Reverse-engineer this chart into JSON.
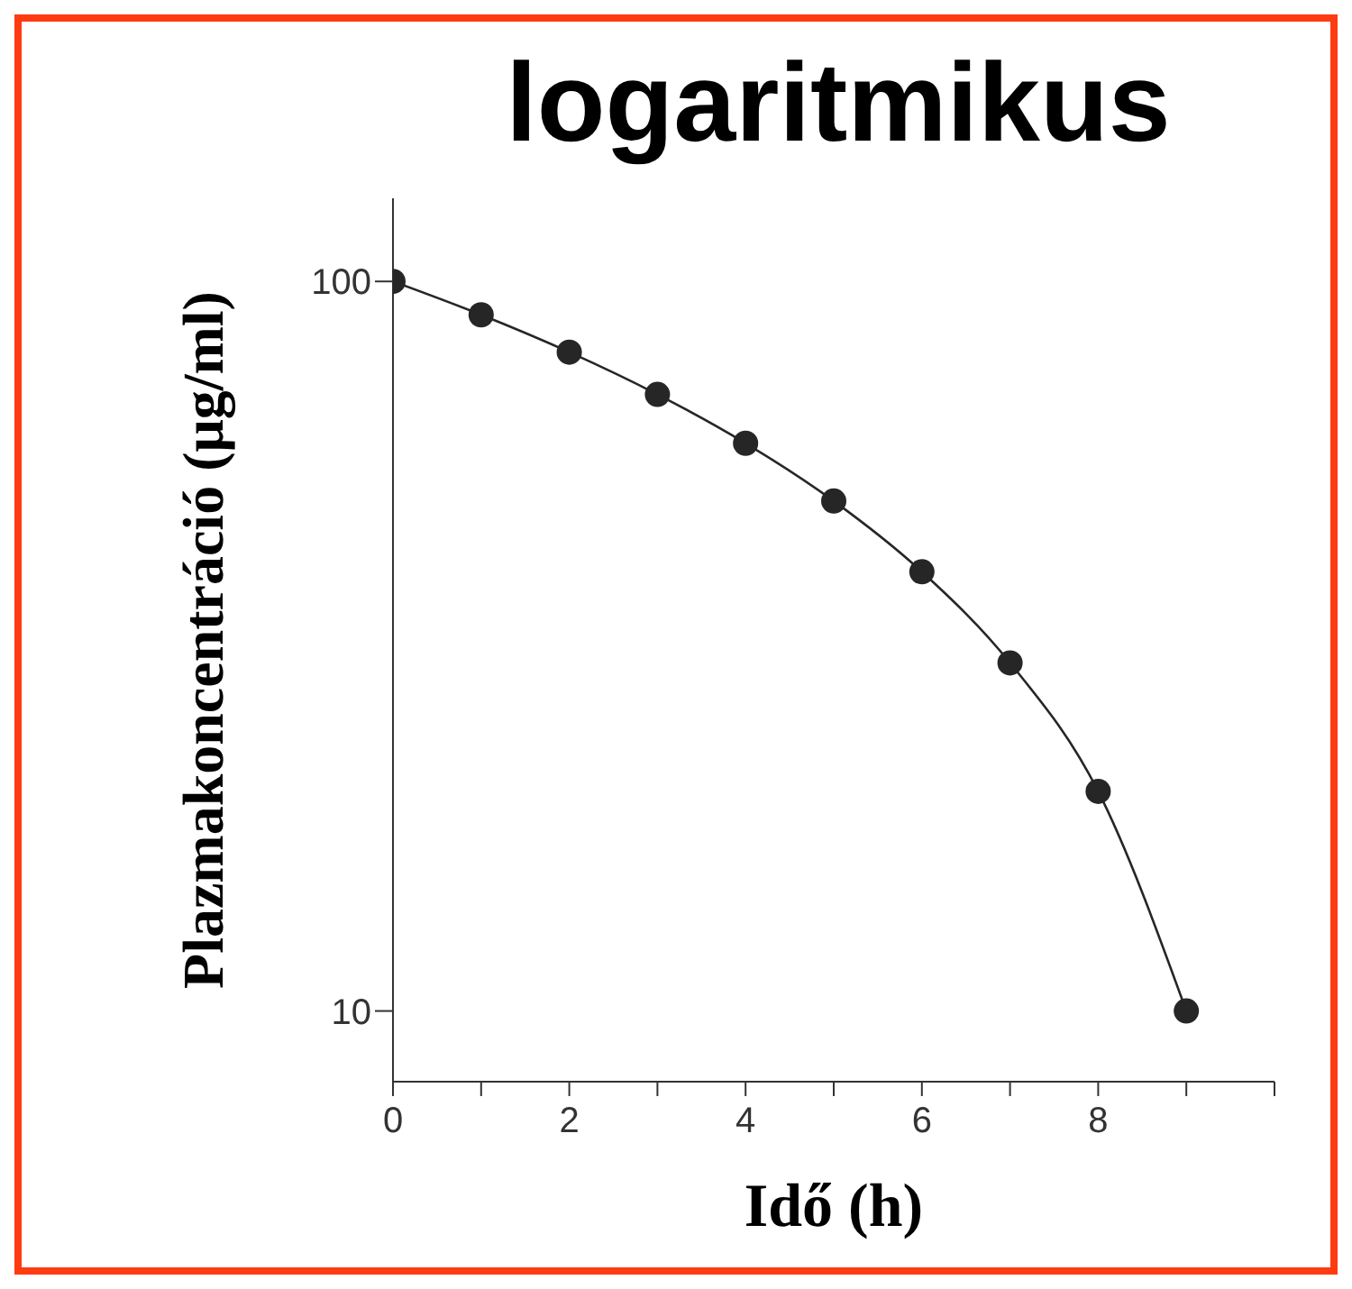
{
  "chart_data": {
    "type": "line",
    "title": "logaritmikus",
    "xlabel": "Idő (h)",
    "ylabel": "Plazmakoncentráció (μg/ml)",
    "x": [
      0,
      1,
      2,
      3,
      4,
      5,
      6,
      7,
      8,
      9
    ],
    "series": [
      {
        "color": "#262626",
        "values": [
          100,
          90,
          80,
          70,
          60,
          50,
          40,
          30,
          20,
          10
        ]
      }
    ],
    "log": "y",
    "xlim": [
      0,
      10
    ],
    "xticks": [
      0,
      {
        "value": 1,
        "label": null
      },
      2,
      {
        "value": 3,
        "label": null
      },
      4,
      {
        "value": 5,
        "label": null
      },
      6,
      {
        "value": 7,
        "label": null
      },
      8,
      {
        "value": 9,
        "label": null
      },
      {
        "value": 10,
        "label": null
      }
    ],
    "ylim": [
      8,
      130
    ],
    "yticks": [
      10,
      100
    ],
    "grid": false,
    "legend": false,
    "marker": "circle",
    "line_style": "solid"
  }
}
